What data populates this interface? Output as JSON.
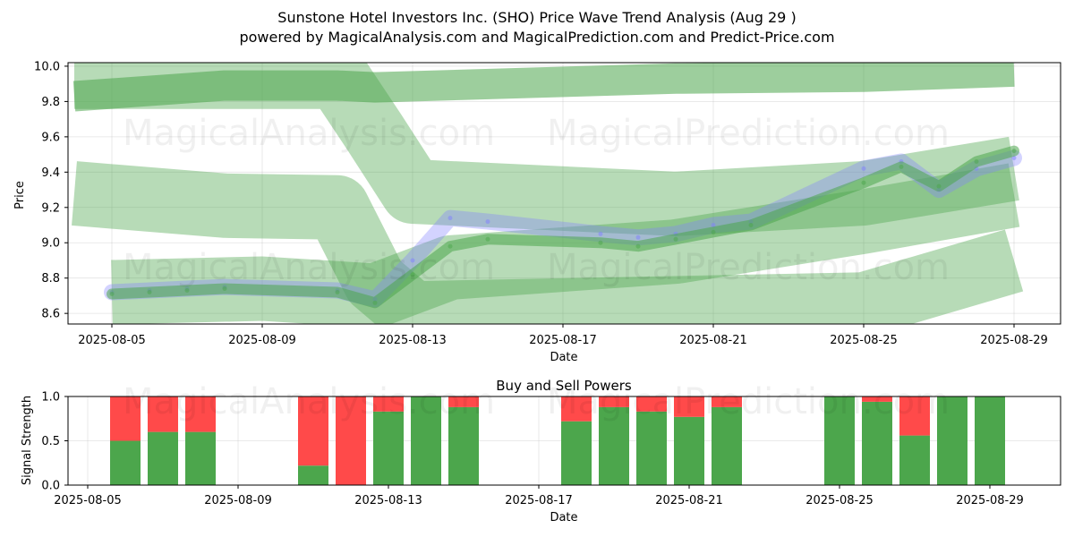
{
  "header": {
    "title": "Sunstone Hotel Investors Inc. (SHO) Price Wave Trend Analysis (Aug 29 )",
    "subtitle": "powered by MagicalAnalysis.com and MagicalPrediction.com and Predict-Price.com"
  },
  "watermarks": [
    "MagicalAnalysis.com",
    "MagicalPrediction.com"
  ],
  "colors": {
    "green": "#4ca64c",
    "red": "#ff4a4a",
    "blue": "#8080ff",
    "band": "#4ca64c"
  },
  "chart_data": [
    {
      "type": "line",
      "xlabel": "Date",
      "ylabel": "Price",
      "ylim": [
        8.54,
        10.02
      ],
      "x_ticks": [
        "2025-08-05",
        "2025-08-09",
        "2025-08-13",
        "2025-08-17",
        "2025-08-21",
        "2025-08-25",
        "2025-08-29"
      ],
      "y_ticks": [
        "8.6",
        "8.8",
        "9.0",
        "9.2",
        "9.4",
        "9.6",
        "9.8",
        "10.0"
      ],
      "x": [
        "2025-08-05",
        "2025-08-06",
        "2025-08-07",
        "2025-08-08",
        "2025-08-11",
        "2025-08-12",
        "2025-08-13",
        "2025-08-14",
        "2025-08-15",
        "2025-08-18",
        "2025-08-19",
        "2025-08-20",
        "2025-08-21",
        "2025-08-22",
        "2025-08-25",
        "2025-08-26",
        "2025-08-27",
        "2025-08-28",
        "2025-08-29"
      ],
      "series": [
        {
          "values": [
            8.72,
            8.73,
            8.74,
            8.75,
            8.73,
            8.68,
            8.9,
            9.14,
            9.12,
            9.05,
            9.03,
            9.05,
            9.1,
            9.12,
            9.42,
            9.46,
            9.3,
            9.42,
            9.48
          ]
        },
        {
          "values": [
            8.71,
            8.72,
            8.73,
            8.74,
            8.72,
            8.66,
            8.82,
            8.98,
            9.02,
            9.0,
            8.98,
            9.02,
            9.06,
            9.1,
            9.34,
            9.43,
            9.32,
            9.46,
            9.52
          ]
        }
      ],
      "bands": [
        {
          "x": [
            "2025-08-04",
            "2025-08-08",
            "2025-08-11",
            "2025-08-12",
            "2025-08-20",
            "2025-08-25",
            "2025-08-29"
          ],
          "values": [
            9.83,
            9.89,
            9.89,
            9.88,
            9.93,
            9.94,
            9.97
          ]
        },
        {
          "x": [
            "2025-08-04",
            "2025-08-11",
            "2025-08-12",
            "2025-08-13",
            "2025-08-20",
            "2025-08-25",
            "2025-08-29"
          ],
          "values": [
            9.94,
            9.94,
            9.62,
            9.29,
            9.22,
            9.28,
            9.42
          ]
        },
        {
          "x": [
            "2025-08-04",
            "2025-08-08",
            "2025-08-11",
            "2025-08-12",
            "2025-08-13",
            "2025-08-25",
            "2025-08-29"
          ],
          "values": [
            9.28,
            9.21,
            9.2,
            8.78,
            8.6,
            8.65,
            8.9
          ]
        },
        {
          "x": [
            "2025-08-05",
            "2025-08-09",
            "2025-08-12",
            "2025-08-14",
            "2025-08-20",
            "2025-08-25",
            "2025-08-29"
          ],
          "values": [
            8.72,
            8.74,
            8.7,
            8.86,
            8.95,
            9.12,
            9.27
          ]
        }
      ]
    },
    {
      "type": "bar",
      "title": "Buy and Sell Powers",
      "xlabel": "Date",
      "ylabel": "Signal Strength",
      "ylim": [
        0,
        1.0
      ],
      "x_ticks": [
        "2025-08-05",
        "2025-08-09",
        "2025-08-13",
        "2025-08-17",
        "2025-08-21",
        "2025-08-25",
        "2025-08-29"
      ],
      "y_ticks": [
        "0.0",
        "0.5",
        "1.0"
      ],
      "categories": [
        "2025-08-06",
        "2025-08-07",
        "2025-08-08",
        "2025-08-11",
        "2025-08-12",
        "2025-08-13",
        "2025-08-14",
        "2025-08-15",
        "2025-08-18",
        "2025-08-19",
        "2025-08-20",
        "2025-08-21",
        "2025-08-22",
        "2025-08-25",
        "2025-08-26",
        "2025-08-27",
        "2025-08-28",
        "2025-08-29"
      ],
      "series": [
        {
          "values": [
            0.5,
            0.6,
            0.6,
            0.22,
            0.0,
            0.83,
            1.0,
            0.88,
            0.72,
            0.88,
            0.83,
            0.77,
            0.88,
            1.0,
            0.94,
            0.56,
            1.0,
            1.0
          ]
        },
        {
          "values": [
            0.5,
            0.4,
            0.4,
            0.78,
            1.0,
            0.17,
            0.0,
            0.12,
            0.28,
            0.12,
            0.17,
            0.23,
            0.12,
            0.0,
            0.06,
            0.44,
            0.0,
            0.0
          ]
        }
      ]
    }
  ]
}
